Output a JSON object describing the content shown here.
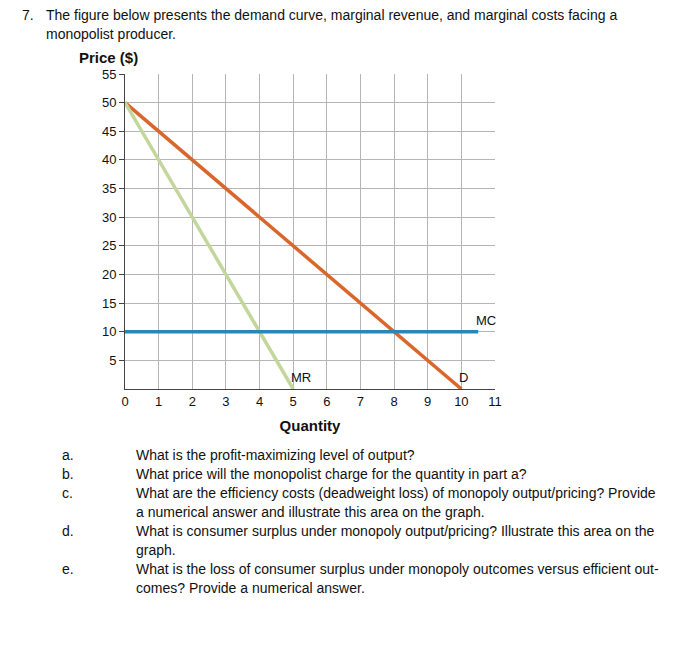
{
  "question": {
    "number": "7.",
    "text": "The figure below presents the demand curve, marginal revenue, and marginal costs facing a monopolist producer."
  },
  "chart_data": {
    "type": "line",
    "y_label": "Price ($)",
    "x_label": "Quantity",
    "xlim": [
      0,
      11
    ],
    "xticks": [
      0,
      1,
      2,
      3,
      4,
      5,
      6,
      7,
      8,
      9,
      10,
      11
    ],
    "ylim": [
      0,
      55
    ],
    "yticks": [
      5,
      10,
      15,
      20,
      25,
      30,
      35,
      40,
      45,
      50,
      55
    ],
    "grid": true,
    "series": [
      {
        "name": "D",
        "color": "#d9662b",
        "x": [
          0,
          10
        ],
        "values": [
          50,
          0
        ]
      },
      {
        "name": "MR",
        "color": "#c3d69b",
        "x": [
          0,
          5
        ],
        "values": [
          50,
          0
        ]
      },
      {
        "name": "MC",
        "color": "#2a86b5",
        "x": [
          0,
          10.5
        ],
        "values": [
          10,
          10
        ]
      }
    ]
  },
  "parts": [
    {
      "label": "a.",
      "text": "What is the profit-maximizing level of output?"
    },
    {
      "label": "b.",
      "text": "What price will the monopolist charge for the quantity in part a?"
    },
    {
      "label": "c.",
      "text": "What are the efficiency costs (deadweight loss) of monopoly output/pricing? Provide a numerical answer and illustrate this area on the graph."
    },
    {
      "label": "d.",
      "text": "What is consumer surplus under monopoly output/pricing? Illustrate this area on the graph."
    },
    {
      "label": "e.",
      "text": "What is the loss of consumer surplus under monopoly outcomes versus efficient out-comes? Provide a numerical answer."
    }
  ]
}
